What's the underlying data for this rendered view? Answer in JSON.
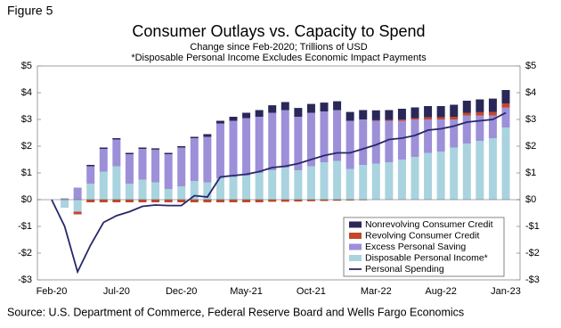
{
  "chart_data": {
    "type": "bar",
    "figure_label": "Figure 5",
    "title": "Consumer Outlays vs. Capacity to Spend",
    "subtitle": "Change since Feb-2020; Trillions of USD",
    "note": "*Disposable Personal Income Excludes Economic Impact Payments",
    "source": "Source: U.S. Department of Commerce, Federal Reserve Board and Wells Fargo Economics",
    "stacked": true,
    "legend": "lower right",
    "categories": [
      "Feb-20",
      null,
      null,
      null,
      null,
      "Jul-20",
      null,
      null,
      null,
      null,
      "Dec-20",
      null,
      null,
      null,
      null,
      "May-21",
      null,
      null,
      null,
      null,
      "Oct-21",
      null,
      null,
      null,
      null,
      "Mar-22",
      null,
      null,
      null,
      null,
      "Aug-22",
      null,
      null,
      null,
      null,
      "Jan-23"
    ],
    "ylim": [
      -3,
      5
    ],
    "yticks": [
      {
        "value": -3,
        "label": "-$3"
      },
      {
        "value": -2,
        "label": "-$2"
      },
      {
        "value": -1,
        "label": "-$1"
      },
      {
        "value": 0,
        "label": "$0"
      },
      {
        "value": 1,
        "label": "$1"
      },
      {
        "value": 2,
        "label": "$2"
      },
      {
        "value": 3,
        "label": "$3"
      },
      {
        "value": 4,
        "label": "$4"
      },
      {
        "value": 5,
        "label": "$5"
      }
    ],
    "y2lim": [
      -3,
      5
    ],
    "y2ticks": [
      {
        "value": -3,
        "label": "-$3"
      },
      {
        "value": -2,
        "label": "-$2"
      },
      {
        "value": -1,
        "label": "-$1"
      },
      {
        "value": 0,
        "label": "$0"
      },
      {
        "value": 1,
        "label": "$1"
      },
      {
        "value": 2,
        "label": "$2"
      },
      {
        "value": 3,
        "label": "$3"
      },
      {
        "value": 4,
        "label": "$4"
      },
      {
        "value": 5,
        "label": "$5"
      }
    ],
    "series": [
      {
        "name": "Disposable Personal Income*",
        "color": "#a9d3df",
        "type": "bar",
        "values": [
          0,
          -0.3,
          -0.45,
          0.6,
          1.05,
          1.25,
          0.6,
          0.75,
          0.65,
          0.4,
          0.5,
          0.7,
          0.65,
          0.8,
          0.85,
          0.9,
          1.0,
          1.1,
          1.2,
          1.1,
          1.25,
          1.4,
          1.45,
          1.15,
          1.3,
          1.35,
          1.4,
          1.5,
          1.6,
          1.75,
          1.8,
          1.95,
          2.1,
          2.2,
          2.3,
          2.7
        ]
      },
      {
        "name": "Excess Personal Saving",
        "color": "#9d8fd8",
        "type": "bar",
        "values": [
          0,
          0.05,
          0.45,
          0.65,
          0.85,
          1.0,
          1.1,
          1.15,
          1.22,
          1.3,
          1.45,
          1.6,
          1.7,
          2.05,
          2.1,
          2.15,
          2.1,
          2.15,
          2.15,
          2.0,
          2.0,
          1.9,
          1.9,
          1.8,
          1.7,
          1.6,
          1.55,
          1.45,
          1.4,
          1.25,
          1.2,
          1.05,
          1.05,
          0.95,
          0.85,
          0.75
        ]
      },
      {
        "name": "Revolving Consumer Credit",
        "color": "#c4472a",
        "type": "bar",
        "values": [
          0,
          0,
          -0.1,
          -0.1,
          -0.1,
          -0.1,
          -0.1,
          -0.1,
          -0.1,
          -0.1,
          -0.1,
          -0.1,
          -0.1,
          -0.1,
          -0.1,
          -0.1,
          -0.1,
          -0.08,
          -0.08,
          -0.07,
          -0.06,
          -0.05,
          -0.04,
          -0.03,
          -0.02,
          0.02,
          0.03,
          0.05,
          0.05,
          0.08,
          0.08,
          0.1,
          0.1,
          0.12,
          0.13,
          0.15
        ]
      },
      {
        "name": "Nonrevolving Consumer Credit",
        "color": "#2a2858",
        "type": "bar",
        "values": [
          0,
          0,
          0,
          0.05,
          0.05,
          0.05,
          0.05,
          0.05,
          0.05,
          0.05,
          0.05,
          0.05,
          0.1,
          0.1,
          0.15,
          0.2,
          0.25,
          0.28,
          0.3,
          0.33,
          0.33,
          0.33,
          0.33,
          0.33,
          0.35,
          0.37,
          0.37,
          0.4,
          0.4,
          0.42,
          0.42,
          0.45,
          0.45,
          0.48,
          0.5,
          0.5
        ]
      },
      {
        "name": "Personal Spending",
        "color": "#27286a",
        "type": "line",
        "values": [
          0,
          -1.0,
          -2.7,
          -1.7,
          -0.85,
          -0.6,
          -0.45,
          -0.25,
          -0.2,
          -0.22,
          -0.22,
          0.15,
          0.1,
          0.85,
          0.9,
          0.95,
          1.05,
          1.2,
          1.25,
          1.35,
          1.5,
          1.65,
          1.75,
          1.75,
          1.9,
          2.05,
          2.25,
          2.3,
          2.4,
          2.6,
          2.65,
          2.75,
          2.9,
          2.95,
          3.0,
          3.25
        ]
      }
    ]
  }
}
